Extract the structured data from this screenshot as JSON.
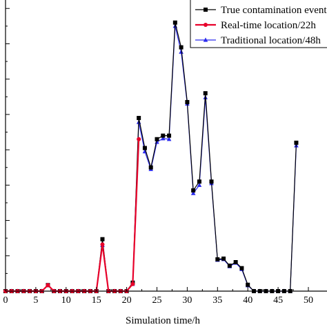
{
  "chart_data": {
    "type": "line",
    "title": "",
    "xlabel": "Simulation time/h",
    "ylabel": "",
    "xlim": [
      0,
      50
    ],
    "ylim": [
      0,
      8.2
    ],
    "x_ticks": [
      "0",
      "5",
      "10",
      "15",
      "20",
      "25",
      "30",
      "35",
      "40",
      "45",
      "50"
    ],
    "y_ticks": [
      0,
      0.5,
      1,
      1.5,
      2,
      2.5,
      3,
      3.5,
      4,
      4.5,
      5,
      5.5,
      6,
      6.5,
      7,
      7.5,
      8
    ],
    "grid": false,
    "legend": "top-right",
    "series": [
      {
        "name": "True contamination event",
        "color": "#000000",
        "marker": "square",
        "x": [
          0,
          1,
          2,
          3,
          4,
          5,
          6,
          7,
          8,
          9,
          10,
          11,
          12,
          13,
          14,
          15,
          16,
          17,
          18,
          19,
          20,
          21,
          22,
          23,
          24,
          25,
          26,
          27,
          28,
          29,
          30,
          31,
          32,
          33,
          34,
          35,
          36,
          37,
          38,
          39,
          40,
          41,
          42,
          43,
          44,
          45,
          46,
          47,
          48
        ],
        "y": [
          0,
          0,
          0,
          0,
          0,
          0,
          0,
          0.17,
          0,
          0,
          0,
          0,
          0,
          0,
          0,
          0,
          1.47,
          0,
          0,
          0,
          0,
          0.24,
          4.9,
          4.05,
          3.5,
          4.3,
          4.4,
          4.4,
          7.6,
          6.9,
          5.35,
          2.85,
          3.1,
          5.6,
          3.1,
          0.9,
          0.92,
          0.72,
          0.82,
          0.65,
          0.18,
          0,
          0,
          0,
          0,
          0,
          0,
          0,
          4.2
        ]
      },
      {
        "name": "Real-time location/22h",
        "color": "#e8002a",
        "marker": "circle",
        "x": [
          0,
          1,
          2,
          3,
          4,
          5,
          6,
          7,
          8,
          9,
          10,
          11,
          12,
          13,
          14,
          15,
          16,
          17,
          18,
          19,
          20,
          21,
          22
        ],
        "y": [
          0,
          0,
          0,
          0,
          0,
          0,
          0,
          0.17,
          0,
          0,
          0,
          0,
          0,
          0,
          0,
          0,
          1.32,
          0,
          0,
          0,
          0,
          0.2,
          4.3
        ]
      },
      {
        "name": "Traditional location/48h",
        "color": "#2a2aee",
        "marker": "triangle",
        "x": [
          0,
          1,
          2,
          3,
          4,
          5,
          6,
          7,
          8,
          9,
          10,
          11,
          12,
          13,
          14,
          15,
          16,
          17,
          18,
          19,
          20,
          21,
          22,
          23,
          24,
          25,
          26,
          27,
          28,
          29,
          30,
          31,
          32,
          33,
          34,
          35,
          36,
          37,
          38,
          39,
          40,
          41,
          42,
          43,
          44,
          45,
          46,
          47,
          48
        ],
        "y": [
          0,
          0,
          0,
          0,
          0,
          0,
          0,
          0.17,
          0,
          0,
          0,
          0,
          0,
          0,
          0,
          0,
          1.3,
          0,
          0,
          0,
          0,
          0.2,
          4.78,
          3.95,
          3.45,
          4.22,
          4.32,
          4.3,
          7.5,
          6.77,
          5.3,
          2.77,
          3.0,
          5.48,
          3.05,
          0.88,
          0.9,
          0.7,
          0.8,
          0.62,
          0.16,
          0,
          0,
          0,
          0,
          0,
          0,
          0,
          4.12
        ]
      }
    ]
  }
}
